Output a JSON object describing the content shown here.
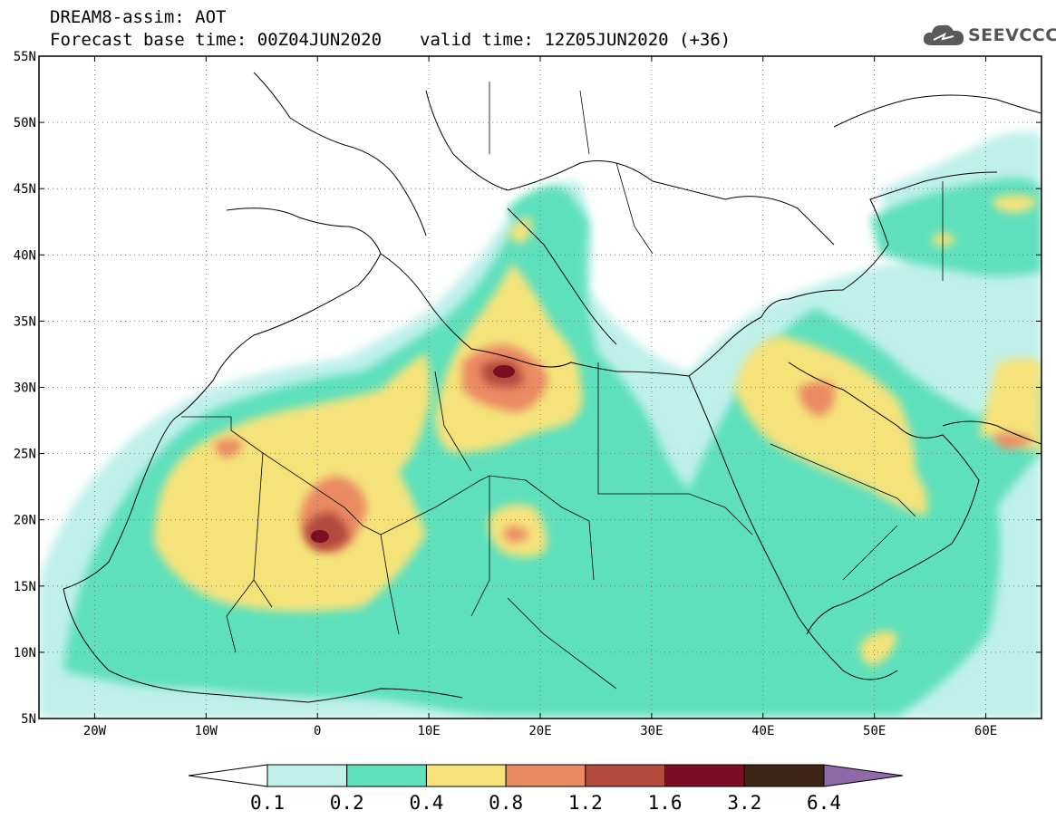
{
  "header": {
    "line1": "DREAM8-assim: AOT",
    "base_time": "Forecast base time: 00Z04JUN2020",
    "valid_time": "valid time: 12Z05JUN2020 (+36)"
  },
  "logo": {
    "text": "SEEVCCC",
    "icon": "cloud-logo-icon"
  },
  "map": {
    "lon_range": [
      -25,
      65
    ],
    "lat_range": [
      5,
      55
    ],
    "lat_ticks": [
      {
        "v": 55,
        "label": "55N"
      },
      {
        "v": 50,
        "label": "50N"
      },
      {
        "v": 45,
        "label": "45N"
      },
      {
        "v": 40,
        "label": "40N"
      },
      {
        "v": 35,
        "label": "35N"
      },
      {
        "v": 30,
        "label": "30N"
      },
      {
        "v": 25,
        "label": "25N"
      },
      {
        "v": 20,
        "label": "20N"
      },
      {
        "v": 15,
        "label": "15N"
      },
      {
        "v": 10,
        "label": "10N"
      },
      {
        "v": 5,
        "label": "5N"
      }
    ],
    "lon_ticks": [
      {
        "v": -20,
        "label": "20W"
      },
      {
        "v": -10,
        "label": "10W"
      },
      {
        "v": 0,
        "label": "0"
      },
      {
        "v": 10,
        "label": "10E"
      },
      {
        "v": 20,
        "label": "20E"
      },
      {
        "v": 30,
        "label": "30E"
      },
      {
        "v": 40,
        "label": "40E"
      },
      {
        "v": 50,
        "label": "50E"
      },
      {
        "v": 60,
        "label": "60E"
      }
    ],
    "grid": "dotted"
  },
  "colorbar": {
    "labels": [
      "0.1",
      "0.2",
      "0.4",
      "0.8",
      "1.2",
      "1.6",
      "3.2",
      "6.4"
    ],
    "colors": [
      "#ffffff",
      "#bff0ea",
      "#5fe0bc",
      "#f5e37a",
      "#ea8a63",
      "#b4493e",
      "#7e0d24",
      "#3d2414",
      "#8f6aa9"
    ]
  }
}
